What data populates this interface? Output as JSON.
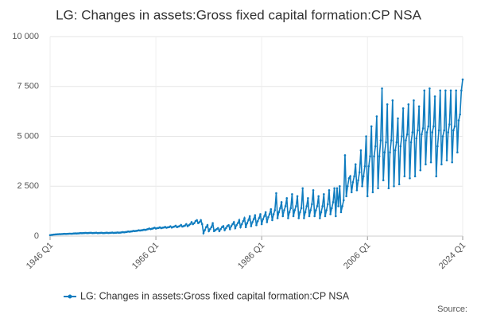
{
  "chart_data": {
    "type": "line",
    "title": "LG: Changes in assets:Gross fixed capital formation:CP NSA",
    "source": "Source:",
    "categories": [
      "1946 Q1",
      null,
      null,
      null,
      null,
      null,
      null,
      null,
      null,
      null,
      null,
      null,
      null,
      null,
      null,
      null,
      null,
      null,
      null,
      null,
      null,
      null,
      null,
      null,
      null,
      null,
      null,
      null,
      null,
      null,
      null,
      null,
      null,
      null,
      null,
      null,
      null,
      null,
      null,
      null,
      null,
      null,
      null,
      null,
      null,
      null,
      null,
      null,
      null,
      null,
      null,
      null,
      null,
      null,
      null,
      null,
      null,
      null,
      null,
      null,
      null,
      null,
      null,
      null,
      null,
      null,
      null,
      null,
      null,
      null,
      null,
      null,
      null,
      null,
      null,
      null,
      null,
      null,
      null,
      null,
      "1966 Q1",
      null,
      null,
      null,
      null,
      null,
      null,
      null,
      null,
      null,
      null,
      null,
      null,
      null,
      null,
      null,
      null,
      null,
      null,
      null,
      null,
      null,
      null,
      null,
      null,
      null,
      null,
      null,
      null,
      null,
      null,
      null,
      null,
      null,
      null,
      null,
      null,
      null,
      null,
      null,
      null,
      null,
      null,
      null,
      null,
      null,
      null,
      null,
      null,
      null,
      null,
      null,
      null,
      null,
      null,
      null,
      null,
      null,
      null,
      null,
      null,
      null,
      null,
      null,
      null,
      null,
      null,
      null,
      null,
      null,
      null,
      null,
      null,
      null,
      null,
      null,
      null,
      null,
      null,
      null,
      "1986 Q1",
      null,
      null,
      null,
      null,
      null,
      null,
      null,
      null,
      null,
      null,
      null,
      null,
      null,
      null,
      null,
      null,
      null,
      null,
      null,
      null,
      null,
      null,
      null,
      null,
      null,
      null,
      null,
      null,
      null,
      null,
      null,
      null,
      null,
      null,
      null,
      null,
      null,
      null,
      null,
      null,
      null,
      null,
      null,
      null,
      null,
      null,
      null,
      null,
      null,
      null,
      null,
      null,
      null,
      null,
      null,
      null,
      null,
      null,
      null,
      null,
      null,
      null,
      null,
      null,
      null,
      null,
      null,
      null,
      null,
      null,
      null,
      null,
      null,
      null,
      null,
      null,
      null,
      null,
      null,
      "2006 Q1",
      null,
      null,
      null,
      null,
      null,
      null,
      null,
      null,
      null,
      null,
      null,
      null,
      null,
      null,
      null,
      null,
      null,
      null,
      null,
      null,
      null,
      null,
      null,
      null,
      null,
      null,
      null,
      null,
      null,
      null,
      null,
      null,
      null,
      null,
      null,
      null,
      null,
      null,
      null,
      null,
      null,
      null,
      null,
      null,
      null,
      null,
      null,
      null,
      null,
      null,
      null,
      null,
      null,
      null,
      null,
      null,
      null,
      null,
      null,
      null,
      null,
      null,
      null,
      null,
      null,
      null,
      null,
      null,
      null,
      null,
      null,
      "2024 Q1"
    ],
    "series": [
      {
        "name": "LG: Changes in assets:Gross fixed capital formation:CP NSA",
        "color": "#0f7cbf",
        "values": [
          50,
          60,
          70,
          80,
          85,
          90,
          95,
          100,
          100,
          105,
          110,
          115,
          110,
          115,
          120,
          125,
          120,
          125,
          130,
          135,
          130,
          135,
          140,
          150,
          145,
          150,
          155,
          160,
          150,
          155,
          160,
          165,
          150,
          155,
          160,
          165,
          150,
          155,
          160,
          165,
          150,
          155,
          160,
          170,
          155,
          160,
          165,
          175,
          160,
          165,
          170,
          180,
          170,
          175,
          185,
          200,
          190,
          200,
          210,
          230,
          220,
          230,
          240,
          260,
          250,
          260,
          270,
          290,
          280,
          290,
          300,
          320,
          310,
          330,
          350,
          380,
          350,
          370,
          390,
          420,
          380,
          400,
          410,
          440,
          400,
          420,
          430,
          460,
          420,
          440,
          450,
          490,
          430,
          460,
          480,
          520,
          450,
          480,
          500,
          560,
          480,
          500,
          530,
          600,
          500,
          550,
          600,
          700,
          600,
          650,
          750,
          800,
          650,
          700,
          800,
          600,
          150,
          300,
          450,
          550,
          250,
          350,
          450,
          650,
          250,
          300,
          350,
          400,
          250,
          350,
          450,
          500,
          300,
          400,
          500,
          550,
          350,
          500,
          600,
          700,
          400,
          550,
          650,
          800,
          450,
          600,
          750,
          900,
          450,
          650,
          800,
          1000,
          500,
          700,
          850,
          1050,
          550,
          750,
          900,
          1100,
          600,
          850,
          1000,
          1200,
          700,
          950,
          1100,
          1350,
          800,
          1100,
          1300,
          2150,
          900,
          1200,
          1400,
          1700,
          1000,
          1300,
          1500,
          1900,
          900,
          1200,
          1400,
          2100,
          1000,
          1300,
          1500,
          2000,
          900,
          1200,
          1400,
          2400,
          900,
          1200,
          1500,
          1900,
          1000,
          1300,
          1600,
          2300,
          1000,
          1300,
          1500,
          2000,
          900,
          1200,
          1500,
          2100,
          1000,
          1300,
          1600,
          2300,
          1100,
          1400,
          1700,
          2400,
          1000,
          2400,
          1500,
          2500,
          1200,
          1500,
          1800,
          4050,
          2000,
          2500,
          2900,
          3000,
          2200,
          2700,
          3000,
          3600,
          2300,
          2800,
          3200,
          4300,
          2500,
          3000,
          3500,
          5000,
          2000,
          3500,
          4000,
          5500,
          2200,
          4000,
          4500,
          6000,
          2400,
          4000,
          4800,
          7400,
          2800,
          4200,
          4700,
          6600,
          2400,
          4200,
          4800,
          6800,
          2500,
          4300,
          4700,
          5900,
          2600,
          4500,
          5000,
          6400,
          3000,
          4800,
          5100,
          6600,
          2900,
          4700,
          5200,
          6800,
          3000,
          4900,
          5300,
          6500,
          3300,
          5100,
          5400,
          7300,
          3600,
          5200,
          5500,
          7400,
          3700,
          5200,
          5500,
          7000,
          3000,
          4500,
          5300,
          7300,
          3600,
          5000,
          5300,
          7300,
          3800,
          5200,
          5600,
          7300,
          3700,
          5300,
          5500,
          7300,
          4200,
          5800,
          6100,
          7300,
          7850
        ]
      }
    ],
    "ylim": [
      0,
      10000
    ],
    "yticks": [
      0,
      {
        "value": 2500,
        "label": "2 500"
      },
      {
        "value": 5000,
        "label": "5 000"
      },
      {
        "value": 7500,
        "label": "7 500"
      },
      {
        "value": 10000,
        "label": "10 000"
      }
    ],
    "grid": true
  }
}
